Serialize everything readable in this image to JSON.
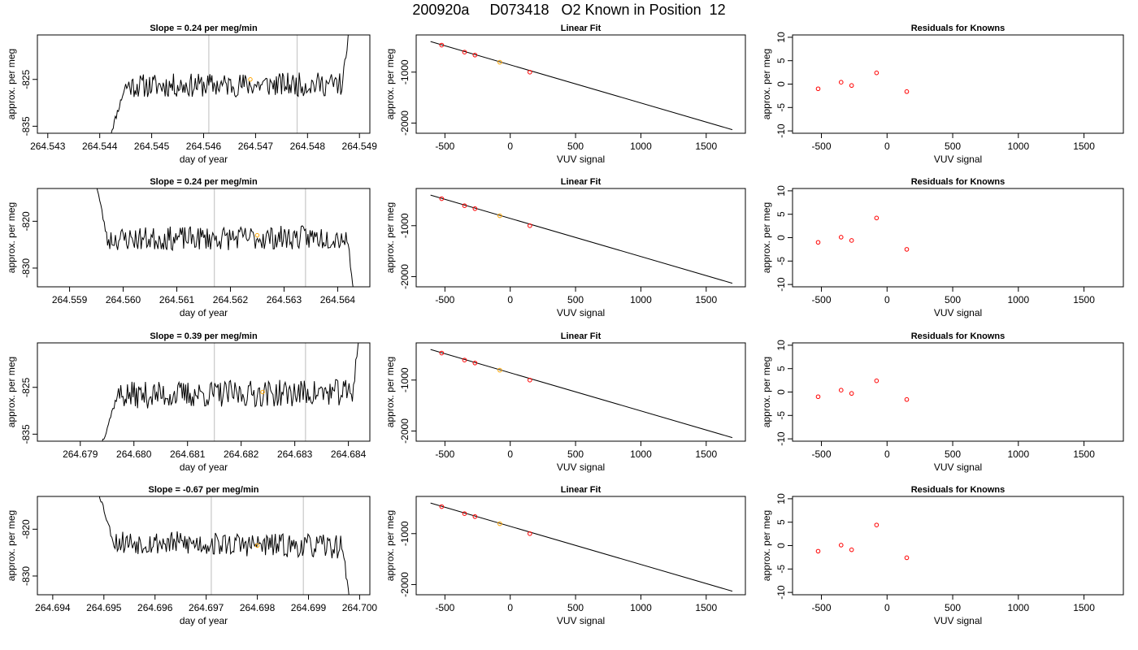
{
  "title": "200920a     D073418   O2 Known in Position  12",
  "colors": {
    "trace": "#000000",
    "grid_marker": "#c8c8c8",
    "current_point": "#ffa500",
    "residual_point": "#ff0000",
    "fit_point": "#ff0000"
  },
  "chart_data": [
    {
      "row": 1,
      "panel": "time",
      "type": "line",
      "title": "Slope =  0.24  per meg/min",
      "xlabel": "day of year",
      "ylabel": "approx. per meg",
      "xlim": [
        264.5428,
        264.5492
      ],
      "ylim": [
        -836.5,
        -815.5
      ],
      "xticks": [
        "264.543",
        "264.544",
        "264.545",
        "264.546",
        "264.547",
        "264.548",
        "264.549"
      ],
      "yticks": [
        "-825",
        "-835"
      ],
      "ytick_values": [
        -825,
        -835
      ],
      "vlines": [
        264.5461,
        264.5478
      ],
      "trace": {
        "start": 264.5442,
        "end": 264.5488,
        "rise_x": 264.5445,
        "rise_from": -837,
        "base": -826.2,
        "slope": 0.24,
        "amp": 1.6,
        "seed": 11,
        "end_rise": -814
      },
      "highlight": {
        "x": 264.5469,
        "y": -825
      }
    },
    {
      "row": 1,
      "panel": "fit",
      "type": "scatter",
      "title": "Linear Fit",
      "xlabel": "VUV signal",
      "ylabel": "approx. per meg",
      "xlim": [
        -720,
        1800
      ],
      "ylim": [
        -2200,
        -270
      ],
      "xticks": [
        "-500",
        "0",
        "500",
        "1000",
        "1500"
      ],
      "xtick_values": [
        -500,
        0,
        500,
        1000,
        1500
      ],
      "yticks": [
        "-1000",
        "-2000"
      ],
      "ytick_values": [
        -1000,
        -2000
      ],
      "line": {
        "x": [
          -610,
          1700
        ],
        "y": [
          -400,
          -2130
        ]
      },
      "points": {
        "x": [
          -525,
          -350,
          -270,
          -80,
          150
        ],
        "y": [
          -470,
          -607,
          -665,
          -806,
          -1000
        ]
      },
      "highlight_index": 3
    },
    {
      "row": 1,
      "panel": "resid",
      "type": "scatter",
      "title": "Residuals for Knowns",
      "xlabel": "VUV signal",
      "ylabel": "approx. per meg",
      "xlim": [
        -720,
        1800
      ],
      "ylim": [
        -10.5,
        10.5
      ],
      "xticks": [
        "-500",
        "0",
        "500",
        "1000",
        "1500"
      ],
      "xtick_values": [
        -500,
        0,
        500,
        1000,
        1500
      ],
      "yticks": [
        "-10",
        "-5",
        "0",
        "5",
        "10"
      ],
      "ytick_values": [
        -10,
        -5,
        0,
        5,
        10
      ],
      "points": {
        "x": [
          -525,
          -350,
          -270,
          -80,
          150
        ],
        "y": [
          -1.0,
          0.4,
          -0.3,
          2.4,
          -1.6
        ]
      }
    },
    {
      "row": 2,
      "panel": "time",
      "type": "line",
      "title": "Slope =  0.24  per meg/min",
      "xlabel": "day of year",
      "ylabel": "approx. per meg",
      "xlim": [
        264.5584,
        264.5646
      ],
      "ylim": [
        -834,
        -813
      ],
      "xticks": [
        "264.559",
        "264.560",
        "264.561",
        "264.562",
        "264.563",
        "264.564"
      ],
      "yticks": [
        "-820",
        "-830"
      ],
      "ytick_values": [
        -820,
        -830
      ],
      "vlines": [
        264.5617,
        264.5634
      ],
      "trace": {
        "start": 264.5595,
        "end": 264.5643,
        "rise_x": 264.5597,
        "rise_from": -812,
        "base": -823.6,
        "slope": 0.24,
        "amp": 1.6,
        "seed": 23,
        "end_rise": -835
      },
      "highlight": {
        "x": 264.5625,
        "y": -823
      }
    },
    {
      "row": 2,
      "panel": "fit",
      "type": "scatter",
      "title": "Linear Fit",
      "xlabel": "VUV signal",
      "ylabel": "approx. per meg",
      "xlim": [
        -720,
        1800
      ],
      "ylim": [
        -2200,
        -270
      ],
      "xticks": [
        "-500",
        "0",
        "500",
        "1000",
        "1500"
      ],
      "xtick_values": [
        -500,
        0,
        500,
        1000,
        1500
      ],
      "yticks": [
        "-1000",
        "-2000"
      ],
      "ytick_values": [
        -1000,
        -2000
      ],
      "line": {
        "x": [
          -610,
          1700
        ],
        "y": [
          -400,
          -2130
        ]
      },
      "points": {
        "x": [
          -525,
          -350,
          -270,
          -80,
          150
        ],
        "y": [
          -470,
          -607,
          -665,
          -806,
          -1000
        ]
      },
      "highlight_index": 3
    },
    {
      "row": 2,
      "panel": "resid",
      "type": "scatter",
      "title": "Residuals for Knowns",
      "xlabel": "VUV signal",
      "ylabel": "approx. per meg",
      "xlim": [
        -720,
        1800
      ],
      "ylim": [
        -10.5,
        10.5
      ],
      "xticks": [
        "-500",
        "0",
        "500",
        "1000",
        "1500"
      ],
      "xtick_values": [
        -500,
        0,
        500,
        1000,
        1500
      ],
      "yticks": [
        "-10",
        "-5",
        "0",
        "5",
        "10"
      ],
      "ytick_values": [
        -10,
        -5,
        0,
        5,
        10
      ],
      "points": {
        "x": [
          -525,
          -350,
          -270,
          -80,
          150
        ],
        "y": [
          -1.0,
          0.1,
          -0.6,
          4.2,
          -2.5
        ]
      }
    },
    {
      "row": 3,
      "panel": "time",
      "type": "line",
      "title": "Slope =  0.39  per meg/min",
      "xlabel": "day of year",
      "ylabel": "approx. per meg",
      "xlim": [
        264.6782,
        264.6844
      ],
      "ylim": [
        -836.5,
        -815.5
      ],
      "xticks": [
        "264.679",
        "264.680",
        "264.681",
        "264.682",
        "264.683",
        "264.684"
      ],
      "yticks": [
        "-825",
        "-835"
      ],
      "ytick_values": [
        -825,
        -835
      ],
      "vlines": [
        264.6815,
        264.6832
      ],
      "trace": {
        "start": 264.6794,
        "end": 264.6842,
        "rise_x": 264.6797,
        "rise_from": -837,
        "base": -826.4,
        "slope": 0.39,
        "amp": 1.8,
        "seed": 37,
        "end_rise": -814
      },
      "highlight": {
        "x": 264.6824,
        "y": -826
      }
    },
    {
      "row": 3,
      "panel": "fit",
      "type": "scatter",
      "title": "Linear Fit",
      "xlabel": "VUV signal",
      "ylabel": "approx. per meg",
      "xlim": [
        -720,
        1800
      ],
      "ylim": [
        -2200,
        -270
      ],
      "xticks": [
        "-500",
        "0",
        "500",
        "1000",
        "1500"
      ],
      "xtick_values": [
        -500,
        0,
        500,
        1000,
        1500
      ],
      "yticks": [
        "-1000",
        "-2000"
      ],
      "ytick_values": [
        -1000,
        -2000
      ],
      "line": {
        "x": [
          -610,
          1700
        ],
        "y": [
          -400,
          -2130
        ]
      },
      "points": {
        "x": [
          -525,
          -350,
          -270,
          -80,
          150
        ],
        "y": [
          -470,
          -607,
          -665,
          -806,
          -1000
        ]
      },
      "highlight_index": 3
    },
    {
      "row": 3,
      "panel": "resid",
      "type": "scatter",
      "title": "Residuals for Knowns",
      "xlabel": "VUV signal",
      "ylabel": "approx. per meg",
      "xlim": [
        -720,
        1800
      ],
      "ylim": [
        -10.5,
        10.5
      ],
      "xticks": [
        "-500",
        "0",
        "500",
        "1000",
        "1500"
      ],
      "xtick_values": [
        -500,
        0,
        500,
        1000,
        1500
      ],
      "yticks": [
        "-10",
        "-5",
        "0",
        "5",
        "10"
      ],
      "ytick_values": [
        -10,
        -5,
        0,
        5,
        10
      ],
      "points": {
        "x": [
          -525,
          -350,
          -270,
          -80,
          150
        ],
        "y": [
          -1.0,
          0.4,
          -0.3,
          2.4,
          -1.6
        ]
      }
    },
    {
      "row": 4,
      "panel": "time",
      "type": "line",
      "title": "Slope =  -0.67  per meg/min",
      "xlabel": "day of year",
      "ylabel": "approx. per meg",
      "xlim": [
        264.6937,
        264.7002
      ],
      "ylim": [
        -834,
        -813
      ],
      "xticks": [
        "264.694",
        "264.695",
        "264.696",
        "264.697",
        "264.698",
        "264.699",
        "264.700"
      ],
      "yticks": [
        "-820",
        "-830"
      ],
      "ytick_values": [
        -820,
        -830
      ],
      "vlines": [
        264.6971,
        264.6989
      ],
      "trace": {
        "start": 264.6949,
        "end": 264.6998,
        "rise_x": 264.6952,
        "rise_from": -812,
        "base": -823.2,
        "slope": -0.67,
        "amp": 1.6,
        "seed": 53,
        "end_rise": -835
      },
      "highlight": {
        "x": 264.698,
        "y": -823.5
      }
    },
    {
      "row": 4,
      "panel": "fit",
      "type": "scatter",
      "title": "Linear Fit",
      "xlabel": "VUV signal",
      "ylabel": "approx. per meg",
      "xlim": [
        -720,
        1800
      ],
      "ylim": [
        -2200,
        -270
      ],
      "xticks": [
        "-500",
        "0",
        "500",
        "1000",
        "1500"
      ],
      "xtick_values": [
        -500,
        0,
        500,
        1000,
        1500
      ],
      "yticks": [
        "-1000",
        "-2000"
      ],
      "ytick_values": [
        -1000,
        -2000
      ],
      "line": {
        "x": [
          -610,
          1700
        ],
        "y": [
          -400,
          -2130
        ]
      },
      "points": {
        "x": [
          -525,
          -350,
          -270,
          -80,
          150
        ],
        "y": [
          -470,
          -607,
          -665,
          -806,
          -1000
        ]
      },
      "highlight_index": 3
    },
    {
      "row": 4,
      "panel": "resid",
      "type": "scatter",
      "title": "Residuals for Knowns",
      "xlabel": "VUV signal",
      "ylabel": "approx. per meg",
      "xlim": [
        -720,
        1800
      ],
      "ylim": [
        -10.5,
        10.5
      ],
      "xticks": [
        "-500",
        "0",
        "500",
        "1000",
        "1500"
      ],
      "xtick_values": [
        -500,
        0,
        500,
        1000,
        1500
      ],
      "yticks": [
        "-10",
        "-5",
        "0",
        "5",
        "10"
      ],
      "ytick_values": [
        -10,
        -5,
        0,
        5,
        10
      ],
      "points": {
        "x": [
          -525,
          -350,
          -270,
          -80,
          150
        ],
        "y": [
          -1.2,
          0.1,
          -0.9,
          4.4,
          -2.6
        ]
      }
    }
  ]
}
